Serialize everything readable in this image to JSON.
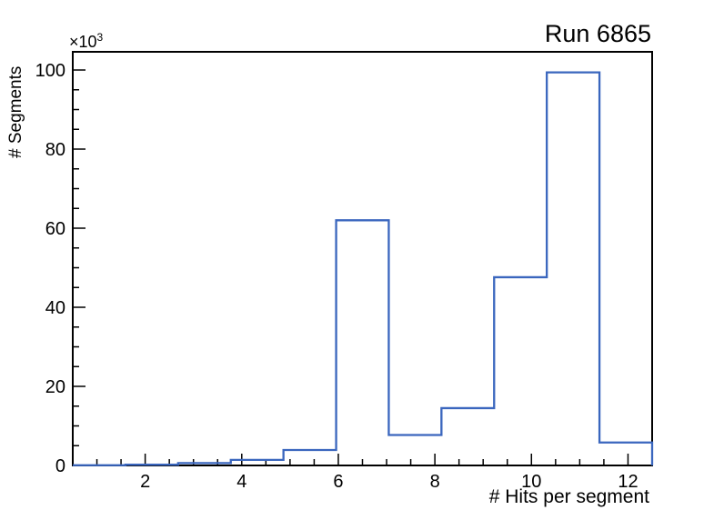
{
  "title": "Run 6865",
  "axes": {
    "x_title": "# Hits per segment",
    "y_title": "# Segments",
    "y_exponent_base": "×10",
    "y_exponent_power": "3"
  },
  "chart_data": {
    "type": "bar",
    "subtype": "step-histogram",
    "title": "Run 6865",
    "xlabel": "# Hits per segment",
    "ylabel": "# Segments",
    "y_unit_multiplier": "×10^3",
    "xlim": [
      0.5,
      12.5
    ],
    "ylim": [
      0,
      104.6
    ],
    "n_bins": 11,
    "bin_edges": [
      0.5,
      1.591,
      2.682,
      3.773,
      4.864,
      5.955,
      7.045,
      8.136,
      9.227,
      10.318,
      11.409,
      12.5
    ],
    "bin_values_thousands": [
      0.05,
      0.2,
      0.6,
      1.4,
      3.9,
      62.0,
      7.7,
      14.5,
      47.6,
      99.4,
      5.8
    ],
    "x_major_ticks": [
      2,
      4,
      6,
      8,
      10,
      12
    ],
    "x_tick_labels": [
      "2",
      "4",
      "6",
      "8",
      "10",
      "12"
    ],
    "x_minor_step": 0.5,
    "y_major_ticks": [
      0,
      20,
      40,
      60,
      80,
      100
    ],
    "y_tick_labels": [
      "0",
      "20",
      "40",
      "60",
      "80",
      "100"
    ],
    "y_minor_step": 5,
    "grid": false,
    "legend": false,
    "line_color": "#3a66be",
    "axis_color": "#000000",
    "background_color": "#ffffff"
  }
}
